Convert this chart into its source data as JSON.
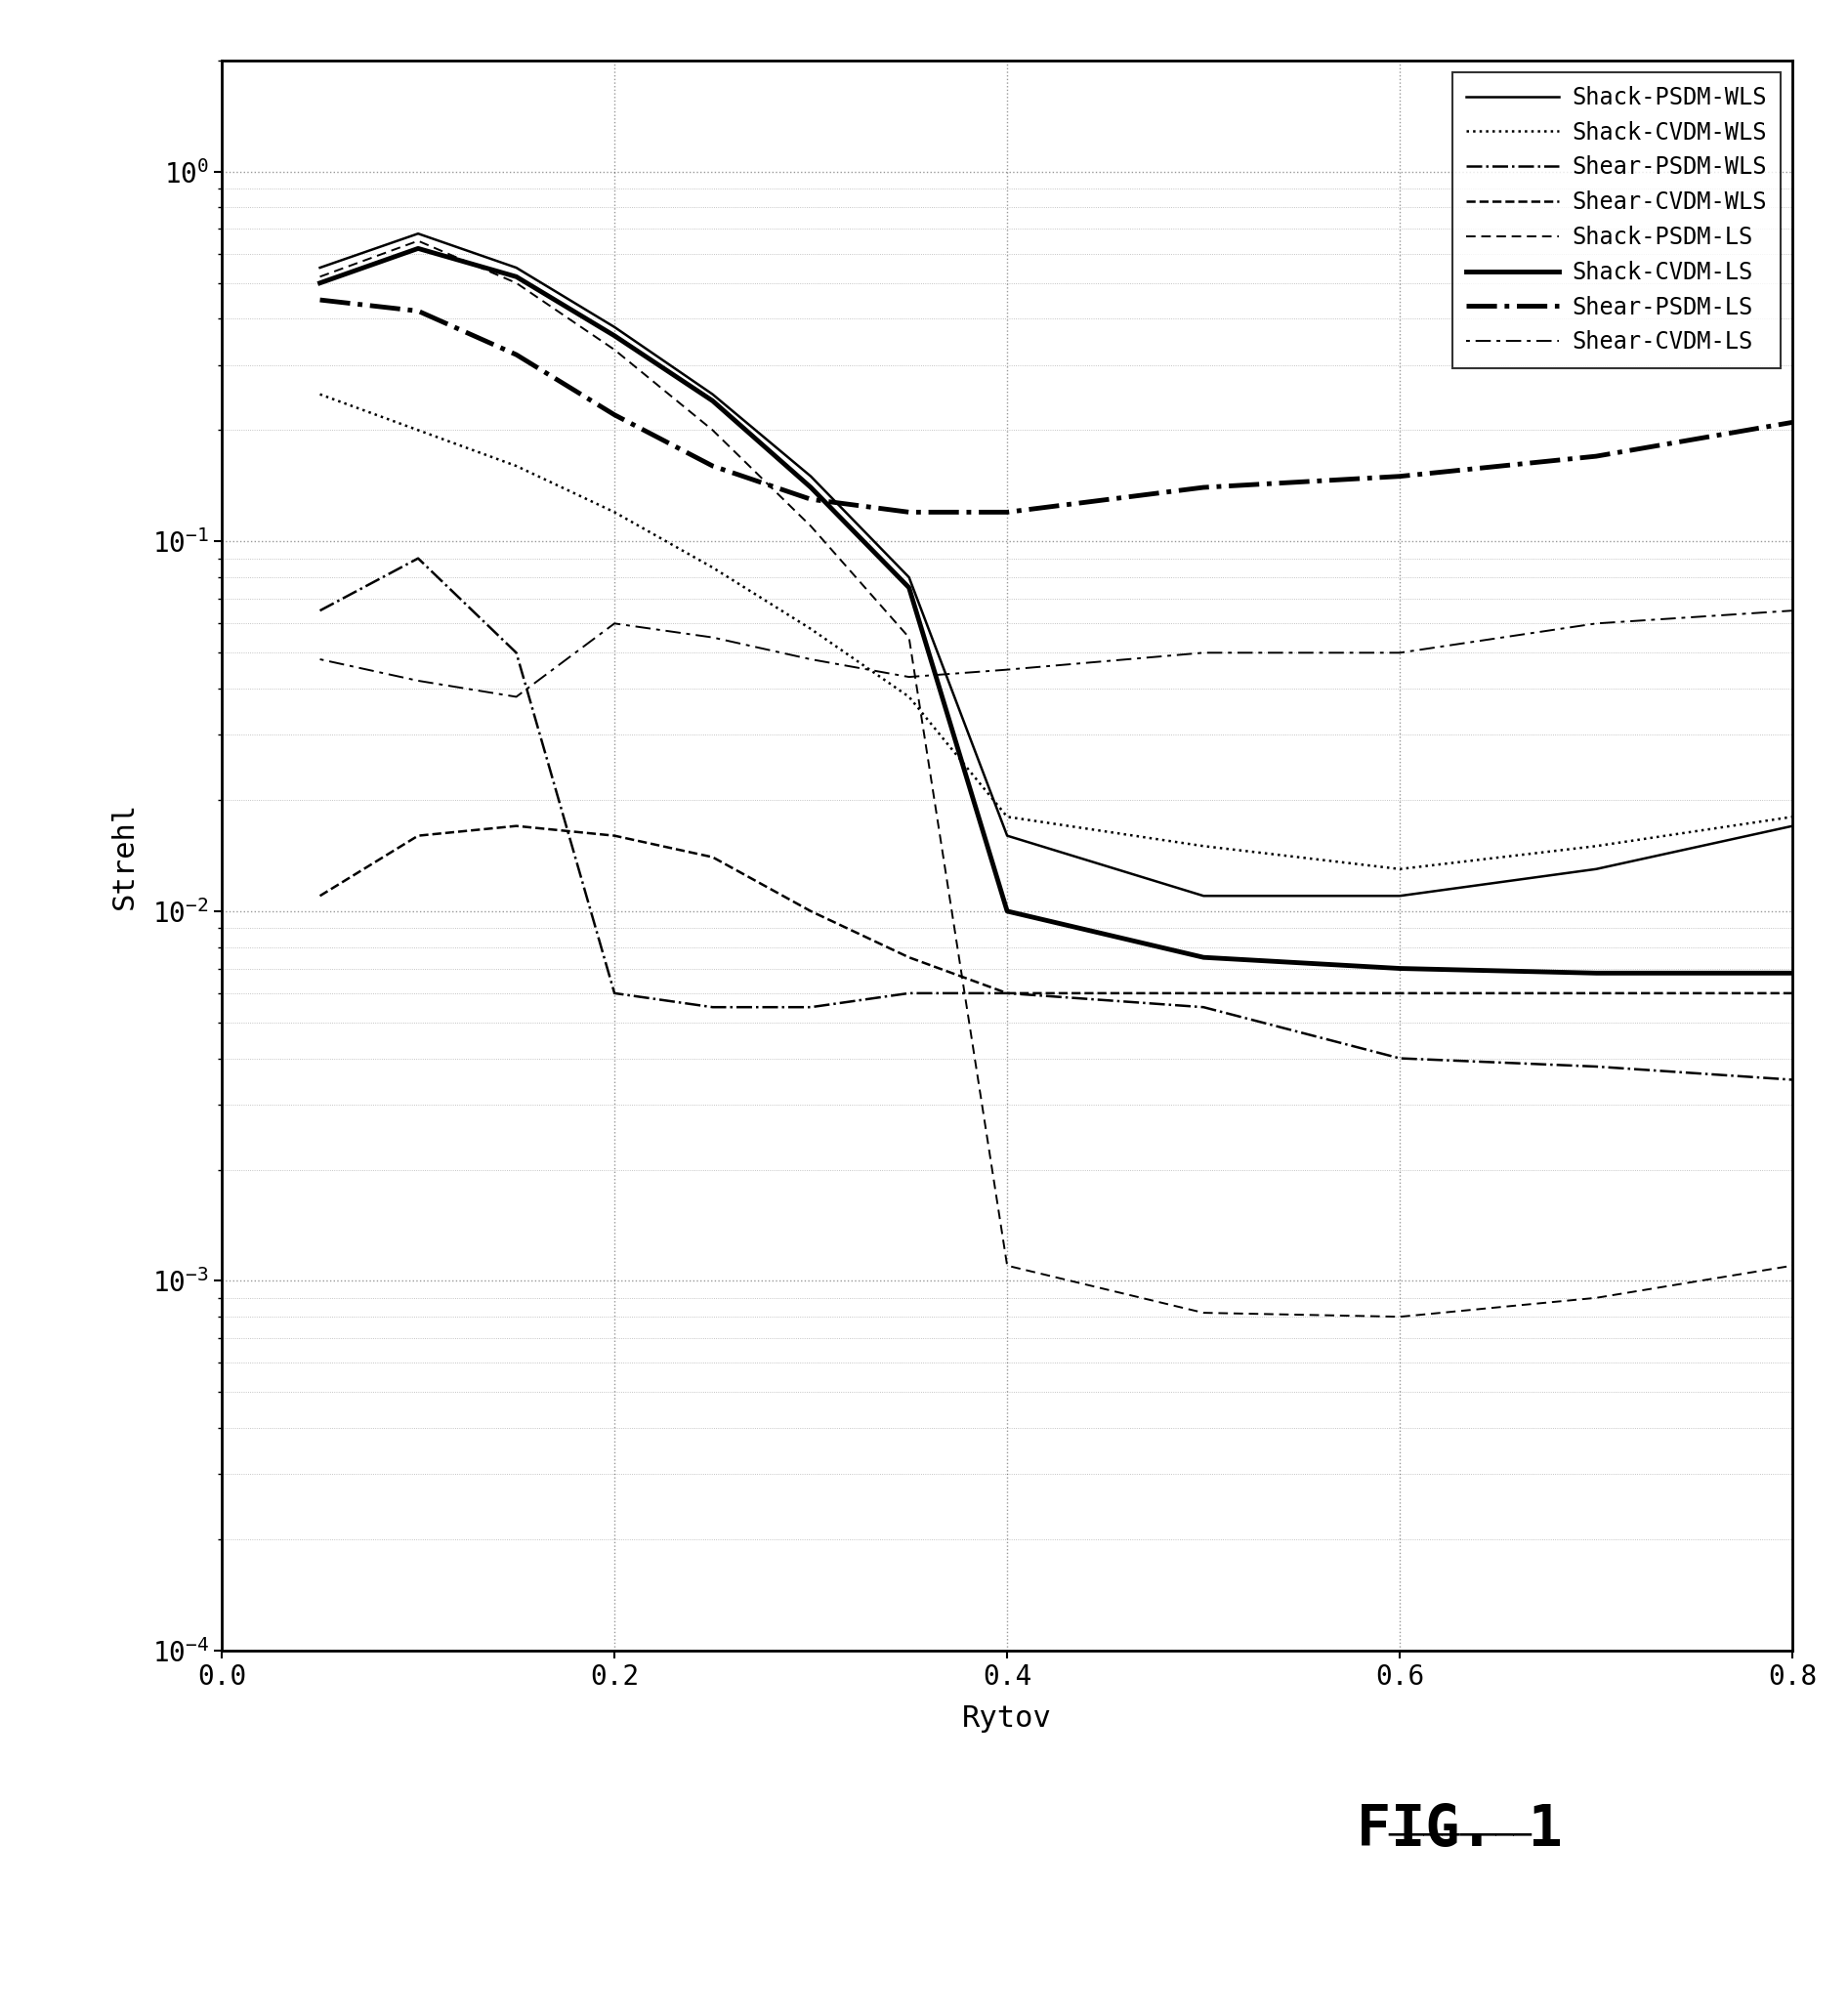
{
  "title": "",
  "xlabel": "Rytov",
  "ylabel": "Strehl",
  "fig_label": "FIG. 1",
  "xlim": [
    0,
    0.8
  ],
  "ylim": [
    0.0001,
    2.0
  ],
  "xticks": [
    0,
    0.2,
    0.4,
    0.6,
    0.8
  ],
  "series": [
    {
      "label": "Shack-PSDM-WLS",
      "linestyle": "solid",
      "linewidth": 1.8,
      "color": "#000000",
      "x": [
        0.05,
        0.1,
        0.15,
        0.2,
        0.25,
        0.3,
        0.35,
        0.4,
        0.5,
        0.6,
        0.7,
        0.8
      ],
      "y": [
        0.55,
        0.68,
        0.55,
        0.38,
        0.25,
        0.15,
        0.08,
        0.016,
        0.011,
        0.011,
        0.013,
        0.017
      ]
    },
    {
      "label": "Shack-CVDM-WLS",
      "linestyle": "dotted",
      "linewidth": 1.8,
      "color": "#000000",
      "x": [
        0.05,
        0.1,
        0.15,
        0.2,
        0.25,
        0.3,
        0.35,
        0.4,
        0.5,
        0.6,
        0.7,
        0.8
      ],
      "y": [
        0.25,
        0.2,
        0.16,
        0.12,
        0.085,
        0.058,
        0.038,
        0.018,
        0.015,
        0.013,
        0.015,
        0.018
      ]
    },
    {
      "label": "Shear-PSDM-WLS",
      "linestyle": "dashdot",
      "linewidth": 1.8,
      "color": "#000000",
      "x": [
        0.05,
        0.1,
        0.15,
        0.2,
        0.25,
        0.3,
        0.35,
        0.4,
        0.5,
        0.6,
        0.7,
        0.8
      ],
      "y": [
        0.065,
        0.09,
        0.05,
        0.006,
        0.0055,
        0.0055,
        0.006,
        0.006,
        0.0055,
        0.004,
        0.0038,
        0.0035
      ]
    },
    {
      "label": "Shear-CVDM-WLS",
      "linestyle": "dashed",
      "linewidth": 1.8,
      "color": "#000000",
      "x": [
        0.05,
        0.1,
        0.15,
        0.2,
        0.25,
        0.3,
        0.35,
        0.4,
        0.5,
        0.6,
        0.7,
        0.8
      ],
      "y": [
        0.011,
        0.016,
        0.017,
        0.016,
        0.014,
        0.01,
        0.0075,
        0.006,
        0.006,
        0.006,
        0.006,
        0.006
      ]
    },
    {
      "label": "Shack-PSDM-LS",
      "linestyle": "dashed_fine",
      "linewidth": 1.4,
      "color": "#000000",
      "x": [
        0.05,
        0.1,
        0.15,
        0.2,
        0.25,
        0.3,
        0.35,
        0.4,
        0.5,
        0.6,
        0.7,
        0.8
      ],
      "y": [
        0.52,
        0.65,
        0.5,
        0.33,
        0.2,
        0.11,
        0.055,
        0.0011,
        0.00082,
        0.0008,
        0.0009,
        0.0011
      ]
    },
    {
      "label": "Shack-CVDM-LS",
      "linestyle": "solid",
      "linewidth": 3.5,
      "color": "#000000",
      "x": [
        0.05,
        0.1,
        0.15,
        0.2,
        0.25,
        0.3,
        0.35,
        0.4,
        0.5,
        0.6,
        0.7,
        0.8
      ],
      "y": [
        0.5,
        0.62,
        0.52,
        0.36,
        0.24,
        0.14,
        0.075,
        0.01,
        0.0075,
        0.007,
        0.0068,
        0.0068
      ]
    },
    {
      "label": "Shear-PSDM-LS",
      "linestyle": "dashdot",
      "linewidth": 3.5,
      "color": "#000000",
      "x": [
        0.05,
        0.1,
        0.15,
        0.2,
        0.25,
        0.3,
        0.35,
        0.4,
        0.5,
        0.6,
        0.7,
        0.8
      ],
      "y": [
        0.45,
        0.42,
        0.32,
        0.22,
        0.16,
        0.13,
        0.12,
        0.12,
        0.14,
        0.15,
        0.17,
        0.21
      ]
    },
    {
      "label": "Shear-CVDM-LS",
      "linestyle": "dot_dash_dot",
      "linewidth": 1.4,
      "color": "#000000",
      "x": [
        0.05,
        0.1,
        0.15,
        0.2,
        0.25,
        0.3,
        0.35,
        0.4,
        0.5,
        0.6,
        0.7,
        0.8
      ],
      "y": [
        0.048,
        0.042,
        0.038,
        0.06,
        0.055,
        0.048,
        0.043,
        0.045,
        0.05,
        0.05,
        0.06,
        0.065
      ]
    }
  ]
}
